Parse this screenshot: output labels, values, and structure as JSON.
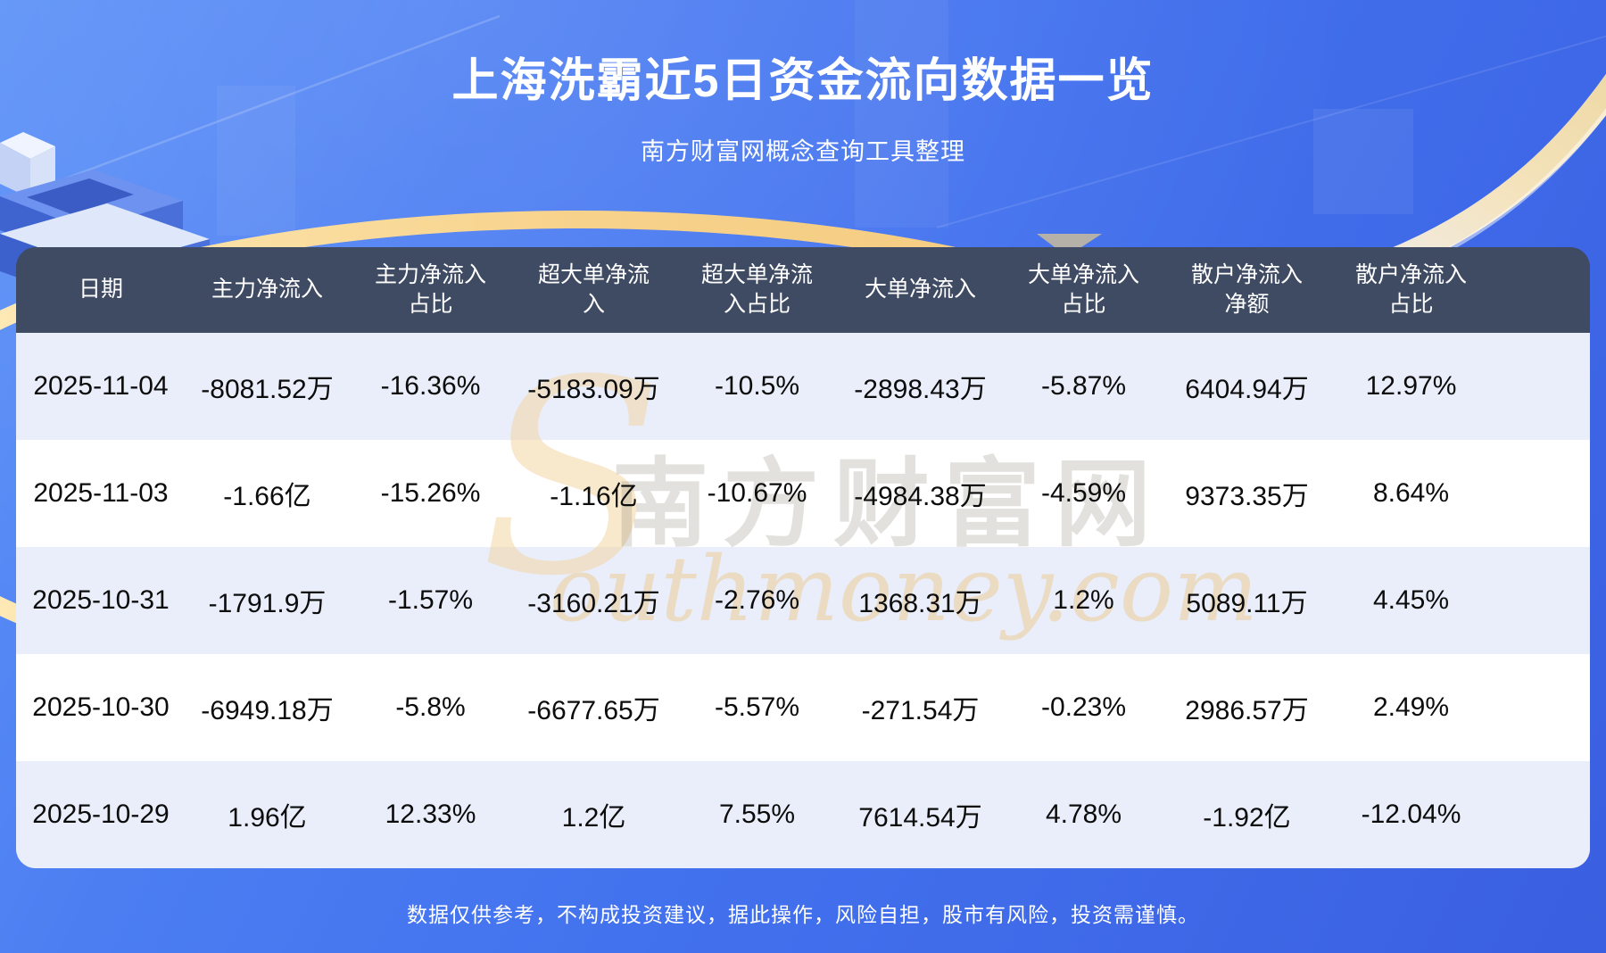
{
  "page": {
    "title": "上海洗霸近5日资金流向数据一览",
    "subtitle": "南方财富网概念查询工具整理",
    "disclaimer": "数据仅供参考，不构成投资建议，据此操作，风险自担，股市有风险，投资需谨慎。"
  },
  "watermark": {
    "initial": "S",
    "cn_text": "南方财富网",
    "en_text": "outhmoney.com"
  },
  "colors": {
    "background_blue": "#4372ee",
    "header_bar": "#3f4a63",
    "row_stripe_blue": "#e9eefa",
    "row_stripe_white": "#ffffff",
    "arc_gold": "#f5c87c",
    "title_text": "#ffffff",
    "body_text": "#0c0c0c"
  },
  "table": {
    "display_headers": [
      "日期",
      "主力净流入",
      "主力净流入\n占比",
      "超大单净流\n入",
      "超大单净流\n入占比",
      "大单净流入",
      "大单净流入\n占比",
      "散户净流入\n净额",
      "散户净流入\n占比"
    ]
  },
  "chart_data": {
    "type": "table",
    "title": "上海洗霸近5日资金流向数据一览",
    "source_note": "南方财富网概念查询工具整理",
    "columns": [
      "日期",
      "主力净流入",
      "主力净流入占比",
      "超大单净流入",
      "超大单净流入占比",
      "大单净流入",
      "大单净流入占比",
      "散户净流入净额",
      "散户净流入占比"
    ],
    "rows": [
      [
        "2025-11-04",
        "-8081.52万",
        "-16.36%",
        "-5183.09万",
        "-10.5%",
        "-2898.43万",
        "-5.87%",
        "6404.94万",
        "12.97%"
      ],
      [
        "2025-11-03",
        "-1.66亿",
        "-15.26%",
        "-1.16亿",
        "-10.67%",
        "-4984.38万",
        "-4.59%",
        "9373.35万",
        "8.64%"
      ],
      [
        "2025-10-31",
        "-1791.9万",
        "-1.57%",
        "-3160.21万",
        "-2.76%",
        "1368.31万",
        "1.2%",
        "5089.11万",
        "4.45%"
      ],
      [
        "2025-10-30",
        "-6949.18万",
        "-5.8%",
        "-6677.65万",
        "-5.57%",
        "-271.54万",
        "-0.23%",
        "2986.57万",
        "2.49%"
      ],
      [
        "2025-10-29",
        "1.96亿",
        "12.33%",
        "1.2亿",
        "7.55%",
        "7614.54万",
        "4.78%",
        "-1.92亿",
        "-12.04%"
      ]
    ]
  }
}
